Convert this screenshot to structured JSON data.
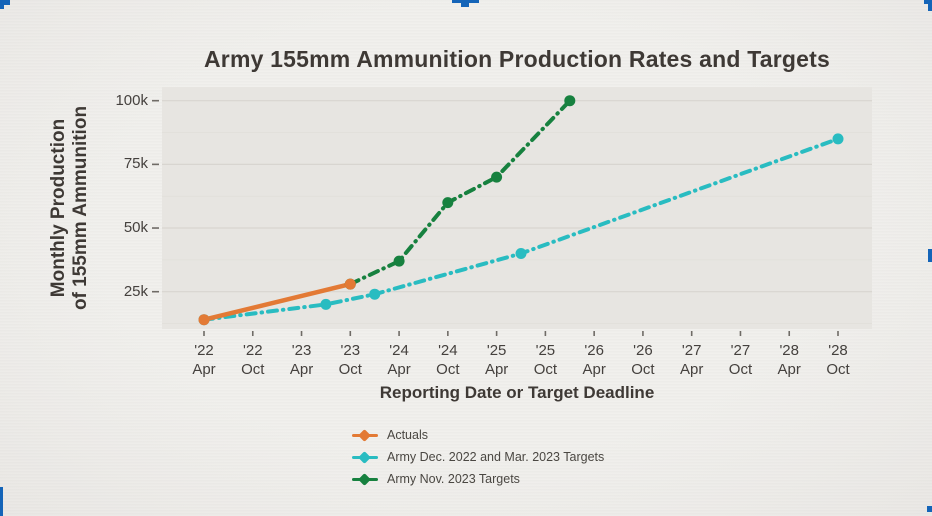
{
  "frame": {
    "accent_color": "#1464B8"
  },
  "chart_data": {
    "type": "line",
    "title": "Army 155mm Ammunition Production Rates and Targets",
    "xlabel": "Reporting Date or Target Deadline",
    "ylabel_lines": [
      "Monthly Production",
      "of 155mm Ammunition"
    ],
    "grid": "horizontal",
    "legend_position": "bottom-left",
    "x_axis": {
      "unit": "months since Apr 2022",
      "ticks": [
        {
          "m": 0,
          "year": "'22",
          "month": "Apr"
        },
        {
          "m": 6,
          "year": "'22",
          "month": "Oct"
        },
        {
          "m": 12,
          "year": "'23",
          "month": "Apr"
        },
        {
          "m": 18,
          "year": "'23",
          "month": "Oct"
        },
        {
          "m": 24,
          "year": "'24",
          "month": "Apr"
        },
        {
          "m": 30,
          "year": "'24",
          "month": "Oct"
        },
        {
          "m": 36,
          "year": "'25",
          "month": "Apr"
        },
        {
          "m": 42,
          "year": "'25",
          "month": "Oct"
        },
        {
          "m": 48,
          "year": "'26",
          "month": "Apr"
        },
        {
          "m": 54,
          "year": "'26",
          "month": "Oct"
        },
        {
          "m": 60,
          "year": "'27",
          "month": "Apr"
        },
        {
          "m": 66,
          "year": "'27",
          "month": "Oct"
        },
        {
          "m": 72,
          "year": "'28",
          "month": "Apr"
        },
        {
          "m": 78,
          "year": "'28",
          "month": "Oct"
        }
      ]
    },
    "y_axis": {
      "range": [
        10000,
        105500
      ],
      "minor_grid_step": 12500,
      "ticks": [
        {
          "value": 25000,
          "label": "25k"
        },
        {
          "value": 50000,
          "label": "50k"
        },
        {
          "value": 75000,
          "label": "75k"
        },
        {
          "value": 100000,
          "label": "100k"
        }
      ]
    },
    "series": [
      {
        "name": "Actuals",
        "color": "#E37A35",
        "style": "solid",
        "points": [
          [
            0,
            14000
          ],
          [
            18,
            28000
          ]
        ]
      },
      {
        "name": "Army Dec. 2022 and Mar. 2023 Targets",
        "color": "#29BCC1",
        "style": "dashdot",
        "points": [
          [
            0,
            14000
          ],
          [
            15,
            20000
          ],
          [
            21,
            24000
          ],
          [
            39,
            40000
          ],
          [
            78,
            85000
          ]
        ]
      },
      {
        "name": "Army Nov. 2023 Targets",
        "color": "#17813F",
        "style": "dashdot",
        "points": [
          [
            18,
            28000
          ],
          [
            24,
            37000
          ],
          [
            30,
            60000
          ],
          [
            36,
            70000
          ],
          [
            45,
            100000
          ]
        ]
      }
    ]
  }
}
